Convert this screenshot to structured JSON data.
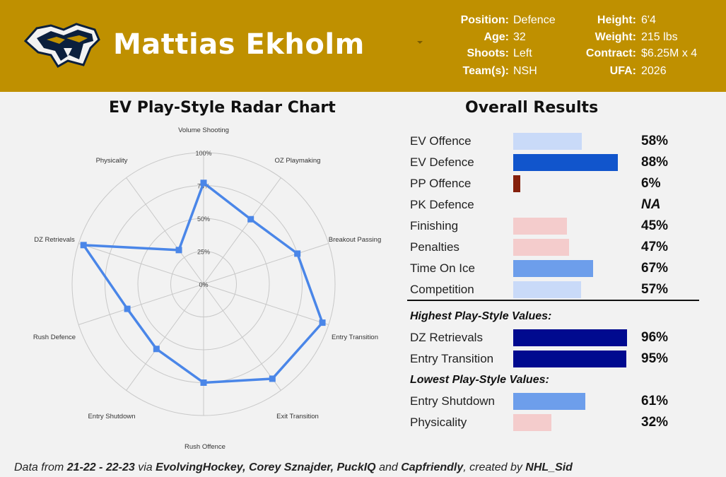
{
  "header": {
    "player_name": "Mattias Ekholm",
    "logo": "predators-logo",
    "info_left": [
      {
        "label": "Position:",
        "value": "Defence"
      },
      {
        "label": "Age:",
        "value": "32"
      },
      {
        "label": "Shoots:",
        "value": "Left"
      },
      {
        "label": "Team(s):",
        "value": "NSH"
      }
    ],
    "info_right": [
      {
        "label": "Height:",
        "value": "6'4"
      },
      {
        "label": "Weight:",
        "value": "215 lbs"
      },
      {
        "label": "Contract:",
        "value": "$6.25M x 4"
      },
      {
        "label": "UFA:",
        "value": "2026"
      }
    ],
    "colors": {
      "banner": "#bf9000"
    }
  },
  "chart_data": [
    {
      "type": "radar",
      "title": "EV Play-Style Radar Chart",
      "axes": [
        "Volume Shooting",
        "OZ Playmaking",
        "Breakout Passing",
        "Entry Transition",
        "Exit Transition",
        "Rush Offence",
        "Entry Shutdown",
        "Rush Defence",
        "DZ Retrievals",
        "Physicality"
      ],
      "values": [
        77,
        61,
        75,
        95,
        89,
        75,
        61,
        61,
        96,
        32
      ],
      "radial_ticks": [
        "0%",
        "25%",
        "50%",
        "75%",
        "100%"
      ],
      "range": [
        0,
        100
      ],
      "series_color": "#4a86e8"
    },
    {
      "type": "bar",
      "title": "Overall Results",
      "rows": [
        {
          "label": "EV Offence",
          "value": 58,
          "display": "58%",
          "color": "#c9daf8"
        },
        {
          "label": "EV Defence",
          "value": 88,
          "display": "88%",
          "color": "#1155cc"
        },
        {
          "label": "PP Offence",
          "value": 6,
          "display": "6%",
          "color": "#85200c"
        },
        {
          "label": "PK Defence",
          "value": null,
          "display": "NA",
          "color": ""
        },
        {
          "label": "Finishing",
          "value": 45,
          "display": "45%",
          "color": "#f4cccc"
        },
        {
          "label": "Penalties",
          "value": 47,
          "display": "47%",
          "color": "#f4cccc"
        },
        {
          "label": "Time On Ice",
          "value": 67,
          "display": "67%",
          "color": "#6d9eeb"
        },
        {
          "label": "Competition",
          "value": 57,
          "display": "57%",
          "color": "#c9daf8"
        }
      ],
      "highest_title": "Highest Play-Style Values:",
      "highest": [
        {
          "label": "DZ Retrievals",
          "value": 96,
          "display": "96%",
          "color": "#000a8f"
        },
        {
          "label": "Entry Transition",
          "value": 95,
          "display": "95%",
          "color": "#000a8f"
        }
      ],
      "lowest_title": "Lowest Play-Style Values:",
      "lowest": [
        {
          "label": "Entry Shutdown",
          "value": 61,
          "display": "61%",
          "color": "#6d9eeb"
        },
        {
          "label": "Physicality",
          "value": 32,
          "display": "32%",
          "color": "#f4cccc"
        }
      ]
    }
  ],
  "footer": {
    "t1": "Data from ",
    "b1": "21-22 - 22-23",
    "t2": " via ",
    "b2": "EvolvingHockey, Corey Sznajder, PuckIQ",
    "t3": " and ",
    "b3": "Capfriendly",
    "t4": ", created by ",
    "b4": "NHL_Sid"
  }
}
